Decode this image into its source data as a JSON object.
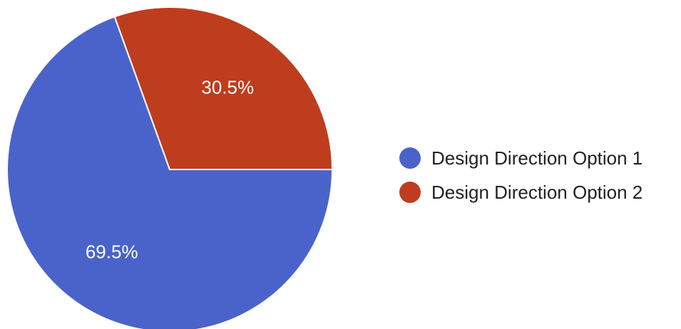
{
  "chart_data": {
    "type": "pie",
    "categories": [
      "Design Direction Option 1",
      "Design Direction Option 2"
    ],
    "values": [
      69.5,
      30.5
    ],
    "value_labels": [
      "69.5%",
      "30.5%"
    ],
    "colors": [
      "#4A63CB",
      "#BE3D1E"
    ],
    "title": "",
    "legend_position": "right"
  }
}
